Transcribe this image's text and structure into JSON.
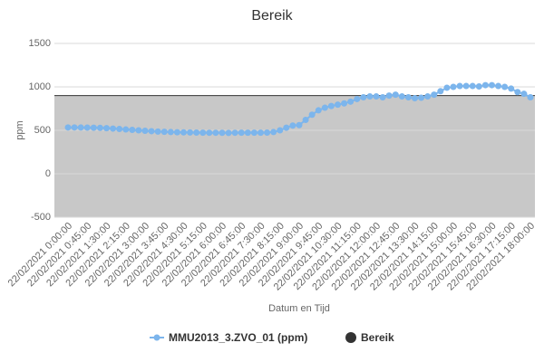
{
  "chart_data": {
    "type": "line",
    "title": "Bereik",
    "xlabel": "Datum en Tijd",
    "ylabel": "ppm",
    "categories": [
      "22/02/2021 0:00:00",
      null,
      null,
      "22/02/2021 0:45:00",
      null,
      null,
      "22/02/2021 1:30:00",
      null,
      null,
      "22/02/2021 2:15:00",
      null,
      null,
      "22/02/2021 3:00:00",
      null,
      null,
      "22/02/2021 3:45:00",
      null,
      null,
      "22/02/2021 4:30:00",
      null,
      null,
      "22/02/2021 5:15:00",
      null,
      null,
      "22/02/2021 6:00:00",
      null,
      null,
      "22/02/2021 6:45:00",
      null,
      null,
      "22/02/2021 7:30:00",
      null,
      null,
      "22/02/2021 8:15:00",
      null,
      null,
      "22/02/2021 9:00:00",
      null,
      null,
      "22/02/2021 9:45:00",
      null,
      null,
      "22/02/2021 10:30:00",
      null,
      null,
      "22/02/2021 11:15:00",
      null,
      null,
      "22/02/2021 12:00:00",
      null,
      null,
      "22/02/2021 12:45:00",
      null,
      null,
      "22/02/2021 13:30:00",
      null,
      null,
      "22/02/2021 14:15:00",
      null,
      null,
      "22/02/2021 15:00:00",
      null,
      null,
      "22/02/2021 15:45:00",
      null,
      null,
      "22/02/2021 16:30:00",
      null,
      null,
      "22/02/2021 17:15:00",
      null,
      null,
      "22/02/2021 18:00:00"
    ],
    "series": [
      {
        "name": "MMU2013_3.ZVO_01 (ppm)",
        "color": "#7cb5ec",
        "values": [
          533,
          533,
          532,
          531,
          530,
          528,
          525,
          520,
          515,
          510,
          505,
          500,
          495,
          490,
          486,
          483,
          480,
          478,
          476,
          475,
          474,
          473,
          472,
          472,
          471,
          470,
          472,
          473,
          473,
          473,
          473,
          474,
          480,
          500,
          530,
          555,
          560,
          620,
          680,
          730,
          760,
          780,
          795,
          810,
          830,
          860,
          880,
          890,
          890,
          880,
          900,
          910,
          890,
          880,
          870,
          875,
          890,
          910,
          950,
          990,
          1000,
          1010,
          1010,
          1010,
          1005,
          1020,
          1020,
          1010,
          1000,
          980,
          940,
          920,
          880
        ]
      }
    ],
    "bands": [
      {
        "name": "Bereik",
        "to": 900,
        "color": "#c8c8c8",
        "line_color": "#333333"
      }
    ],
    "ylim": [
      -500,
      1500
    ],
    "yticks": [
      -500,
      0,
      500,
      1000,
      1500
    ],
    "grid": true
  }
}
